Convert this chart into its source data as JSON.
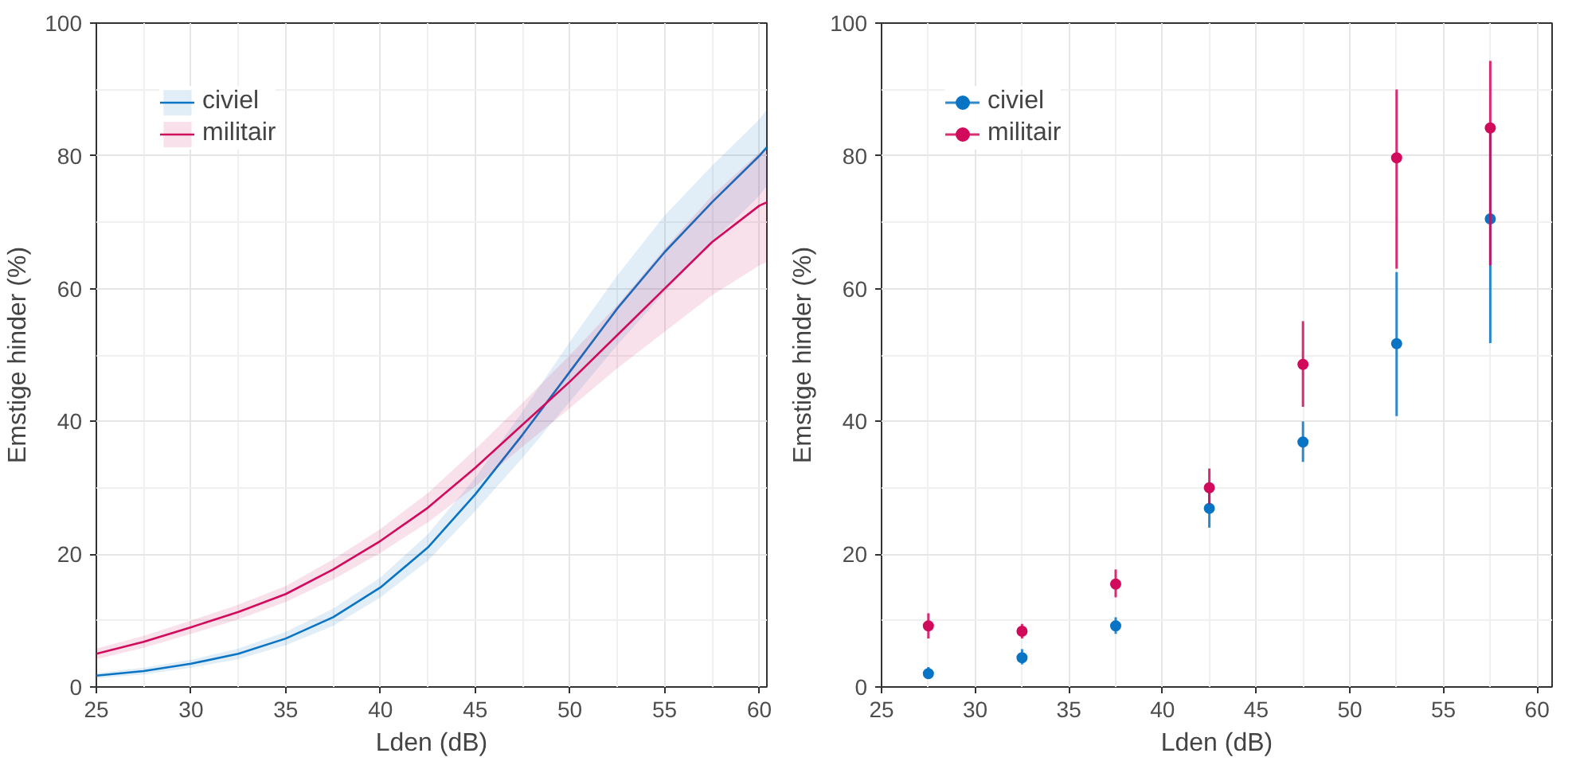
{
  "chart_data": [
    {
      "type": "line",
      "xlabel": "Lden (dB)",
      "ylabel": "Emstige hinder (%)",
      "xlim": [
        25,
        60.4
      ],
      "ylim": [
        0,
        100
      ],
      "xticks": [
        25,
        30,
        35,
        40,
        45,
        50,
        55,
        60
      ],
      "yticks": [
        0,
        20,
        40,
        60,
        80,
        100
      ],
      "grid": true,
      "legend": "top left",
      "marker": "none",
      "line_style": "solid",
      "x": [
        25,
        27.5,
        30,
        32.5,
        35,
        37.5,
        40,
        42.5,
        45,
        47.5,
        50,
        52.5,
        55,
        57.5,
        60,
        60.4
      ],
      "series": [
        {
          "name": "civiel",
          "color": "#0a74c4",
          "values": [
            1.7,
            2.4,
            3.5,
            5,
            7.3,
            10.5,
            15,
            21,
            29,
            38,
            47.5,
            57,
            65.5,
            73,
            80,
            81.3
          ],
          "lower": [
            1.3,
            1.9,
            2.9,
            4.2,
            6.3,
            9.2,
            13.5,
            19,
            26.5,
            34.5,
            43,
            51.5,
            59.5,
            67,
            74,
            75.5
          ],
          "upper": [
            2.1,
            2.9,
            4.1,
            5.8,
            8.3,
            11.8,
            16.5,
            23,
            31.5,
            41.5,
            52,
            62,
            71,
            78.5,
            85.5,
            87
          ]
        },
        {
          "name": "militair",
          "color": "#d10a5c",
          "values": [
            5,
            6.8,
            9,
            11.3,
            14,
            17.7,
            22,
            27,
            33,
            39.5,
            46,
            53,
            60,
            67,
            72.5,
            73
          ],
          "lower": [
            4.2,
            5.9,
            8,
            10.2,
            12.8,
            16.2,
            20.2,
            24.8,
            30.2,
            36.2,
            42,
            48,
            53.5,
            59,
            63.5,
            64
          ],
          "upper": [
            5.8,
            7.7,
            10,
            12.4,
            15.2,
            19.2,
            23.8,
            29.2,
            35.8,
            42.8,
            50,
            57.5,
            66,
            74,
            80.5,
            81
          ]
        }
      ]
    },
    {
      "type": "scatter",
      "xlabel": "Lden (dB)",
      "ylabel": "Emstige hinder (%)",
      "xlim": [
        25,
        60.8
      ],
      "ylim": [
        0,
        100
      ],
      "xticks": [
        25,
        30,
        35,
        40,
        45,
        50,
        55,
        60
      ],
      "yticks": [
        0,
        20,
        40,
        60,
        80,
        100
      ],
      "grid": true,
      "legend": "top left",
      "marker": "circle",
      "x": [
        27.5,
        32.5,
        37.5,
        42.5,
        47.5,
        52.5,
        57.5
      ],
      "series": [
        {
          "name": "civiel",
          "color": "#0a74c4",
          "values": [
            2.0,
            4.4,
            9.2,
            26.9,
            36.9,
            51.7,
            70.5
          ],
          "errors": [
            [
              1.2,
              3.0
            ],
            [
              3.4,
              5.7
            ],
            [
              8.0,
              10.5
            ],
            [
              24.0,
              30.5
            ],
            [
              33.9,
              40.0
            ],
            [
              40.8,
              62.5
            ],
            [
              51.8,
              85.0
            ]
          ]
        },
        {
          "name": "militair",
          "color": "#d10a5c",
          "values": [
            9.2,
            8.4,
            15.5,
            30.0,
            48.6,
            79.7,
            84.2
          ],
          "errors": [
            [
              7.3,
              11.1
            ],
            [
              7.3,
              9.5
            ],
            [
              13.5,
              17.7
            ],
            [
              27.5,
              32.9
            ],
            [
              42.2,
              55.1
            ],
            [
              63.0,
              90.0
            ],
            [
              63.5,
              94.3
            ]
          ]
        }
      ]
    }
  ]
}
